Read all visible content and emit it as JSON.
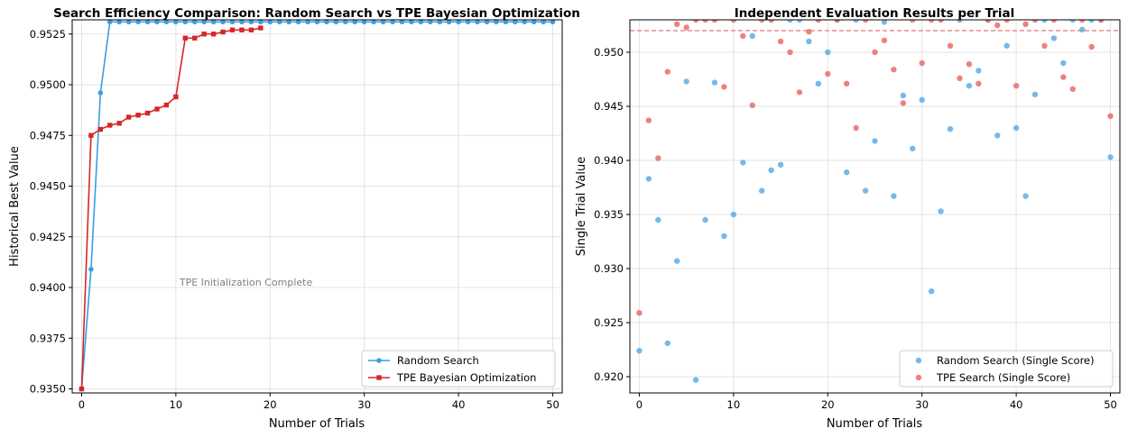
{
  "chart_data": [
    {
      "type": "line",
      "title": "Search Efficiency Comparison: Random Search vs TPE Bayesian Optimization",
      "xlabel": "Number of Trials",
      "ylabel": "Historical Best Value",
      "xlim": [
        -1,
        51
      ],
      "ylim": [
        0.9348,
        0.9532
      ],
      "xticks": [
        0,
        10,
        20,
        30,
        40,
        50
      ],
      "yticks": [
        0.935,
        0.9375,
        0.94,
        0.9425,
        0.945,
        0.9475,
        0.95,
        0.9525
      ],
      "ytick_labels": [
        "0.9350",
        "0.9375",
        "0.9400",
        "0.9425",
        "0.9450",
        "0.9475",
        "0.9500",
        "0.9525"
      ],
      "grid": true,
      "legend_position": "lower-right",
      "annotation": {
        "text": "TPE Initialization Complete",
        "x": 10,
        "y": 0.9401
      },
      "series": [
        {
          "name": "Random Search",
          "color": "#3a9ee4",
          "marker": "circle",
          "x": [
            0,
            1,
            2,
            3,
            4,
            5,
            6,
            7,
            8,
            9,
            10,
            11,
            12,
            13,
            14,
            15,
            16,
            17,
            18,
            19,
            20,
            21,
            22,
            23,
            24,
            25,
            26,
            27,
            28,
            29,
            30,
            31,
            32,
            33,
            34,
            35,
            36,
            37,
            38,
            39,
            40,
            41,
            42,
            43,
            44,
            45,
            46,
            47,
            48,
            49,
            50
          ],
          "values": [
            0.935,
            0.9409,
            0.9496,
            0.9531,
            0.9531,
            0.9531,
            0.9531,
            0.9531,
            0.9531,
            0.9531,
            0.9531,
            0.9531,
            0.9531,
            0.9531,
            0.9531,
            0.9531,
            0.9531,
            0.9531,
            0.9531,
            0.9531,
            0.9531,
            0.9531,
            0.9531,
            0.9531,
            0.9531,
            0.9531,
            0.9531,
            0.9531,
            0.9531,
            0.9531,
            0.9531,
            0.9531,
            0.9531,
            0.9531,
            0.9531,
            0.9531,
            0.9531,
            0.9531,
            0.9531,
            0.9531,
            0.9531,
            0.9531,
            0.9531,
            0.9531,
            0.9531,
            0.9531,
            0.9531,
            0.9531,
            0.9531,
            0.9531,
            0.9531
          ]
        },
        {
          "name": "TPE Bayesian Optimization",
          "color": "#d62728",
          "marker": "square",
          "x": [
            0,
            1,
            2,
            3,
            4,
            5,
            6,
            7,
            8,
            9,
            10,
            11,
            12,
            13,
            14,
            15,
            16,
            17,
            18,
            19
          ],
          "values": [
            0.935,
            0.9475,
            0.9478,
            0.948,
            0.9481,
            0.9484,
            0.9485,
            0.9486,
            0.9488,
            0.949,
            0.9494,
            0.9523,
            0.9523,
            0.9525,
            0.9525,
            0.9526,
            0.9527,
            0.9527,
            0.9527,
            0.9528
          ]
        }
      ]
    },
    {
      "type": "scatter",
      "title": "Independent Evaluation Results per Trial",
      "xlabel": "Number of Trials",
      "ylabel": "Single Trial Value",
      "xlim": [
        -1,
        51
      ],
      "ylim": [
        0.9185,
        0.953
      ],
      "xticks": [
        0,
        10,
        20,
        30,
        40,
        50
      ],
      "yticks": [
        0.92,
        0.925,
        0.93,
        0.935,
        0.94,
        0.945,
        0.95
      ],
      "ytick_labels": [
        "0.920",
        "0.925",
        "0.930",
        "0.935",
        "0.940",
        "0.945",
        "0.950"
      ],
      "grid": true,
      "legend_position": "lower-right",
      "reference_line": {
        "y": 0.952,
        "color": "#e8797a",
        "style": "dashed"
      },
      "series": [
        {
          "name": "Random Search (Single Score)",
          "color": "#5dade8",
          "points": [
            [
              0,
              0.9224
            ],
            [
              1,
              0.9383
            ],
            [
              2,
              0.9345
            ],
            [
              3,
              0.9231
            ],
            [
              4,
              0.9307
            ],
            [
              5,
              0.9473
            ],
            [
              6,
              0.9197
            ],
            [
              7,
              0.9345
            ],
            [
              8,
              0.9472
            ],
            [
              9,
              0.933
            ],
            [
              10,
              0.935
            ],
            [
              11,
              0.9398
            ],
            [
              12,
              0.9515
            ],
            [
              13,
              0.9372
            ],
            [
              14,
              0.9391
            ],
            [
              15,
              0.9396
            ],
            [
              16,
              0.953
            ],
            [
              17,
              0.953
            ],
            [
              18,
              0.951
            ],
            [
              19,
              0.9471
            ],
            [
              20,
              0.95
            ],
            [
              21,
              0.953
            ],
            [
              22,
              0.9389
            ],
            [
              23,
              0.953
            ],
            [
              24,
              0.9372
            ],
            [
              25,
              0.9418
            ],
            [
              26,
              0.9528
            ],
            [
              27,
              0.9367
            ],
            [
              28,
              0.946
            ],
            [
              29,
              0.9411
            ],
            [
              30,
              0.9456
            ],
            [
              31,
              0.9279
            ],
            [
              32,
              0.9353
            ],
            [
              33,
              0.9429
            ],
            [
              34,
              0.953
            ],
            [
              35,
              0.9469
            ],
            [
              36,
              0.9483
            ],
            [
              37,
              0.953
            ],
            [
              38,
              0.9423
            ],
            [
              39,
              0.9506
            ],
            [
              40,
              0.943
            ],
            [
              41,
              0.9367
            ],
            [
              42,
              0.9461
            ],
            [
              43,
              0.953
            ],
            [
              44,
              0.9513
            ],
            [
              45,
              0.949
            ],
            [
              46,
              0.953
            ],
            [
              47,
              0.9521
            ],
            [
              48,
              0.953
            ],
            [
              49,
              0.953
            ],
            [
              50,
              0.9403
            ]
          ]
        },
        {
          "name": "TPE Search (Single Score)",
          "color": "#ea6b6b",
          "points": [
            [
              0,
              0.9259
            ],
            [
              1,
              0.9437
            ],
            [
              2,
              0.9402
            ],
            [
              3,
              0.9482
            ],
            [
              4,
              0.9526
            ],
            [
              5,
              0.9523
            ],
            [
              6,
              0.953
            ],
            [
              7,
              0.953
            ],
            [
              8,
              0.953
            ],
            [
              9,
              0.9468
            ],
            [
              10,
              0.953
            ],
            [
              11,
              0.9515
            ],
            [
              12,
              0.9451
            ],
            [
              13,
              0.953
            ],
            [
              14,
              0.953
            ],
            [
              15,
              0.951
            ],
            [
              16,
              0.95
            ],
            [
              17,
              0.9463
            ],
            [
              18,
              0.9519
            ],
            [
              19,
              0.953
            ],
            [
              20,
              0.948
            ],
            [
              21,
              0.953
            ],
            [
              22,
              0.9471
            ],
            [
              23,
              0.943
            ],
            [
              24,
              0.953
            ],
            [
              25,
              0.95
            ],
            [
              26,
              0.9511
            ],
            [
              27,
              0.9484
            ],
            [
              28,
              0.9453
            ],
            [
              29,
              0.953
            ],
            [
              30,
              0.949
            ],
            [
              31,
              0.953
            ],
            [
              32,
              0.953
            ],
            [
              33,
              0.9506
            ],
            [
              34,
              0.9476
            ],
            [
              35,
              0.9489
            ],
            [
              36,
              0.9471
            ],
            [
              37,
              0.953
            ],
            [
              38,
              0.9525
            ],
            [
              39,
              0.953
            ],
            [
              40,
              0.9469
            ],
            [
              41,
              0.9526
            ],
            [
              42,
              0.953
            ],
            [
              43,
              0.9506
            ],
            [
              44,
              0.953
            ],
            [
              45,
              0.9477
            ],
            [
              46,
              0.9466
            ],
            [
              47,
              0.953
            ],
            [
              48,
              0.9505
            ],
            [
              49,
              0.953
            ],
            [
              50,
              0.9441
            ]
          ]
        }
      ]
    }
  ]
}
